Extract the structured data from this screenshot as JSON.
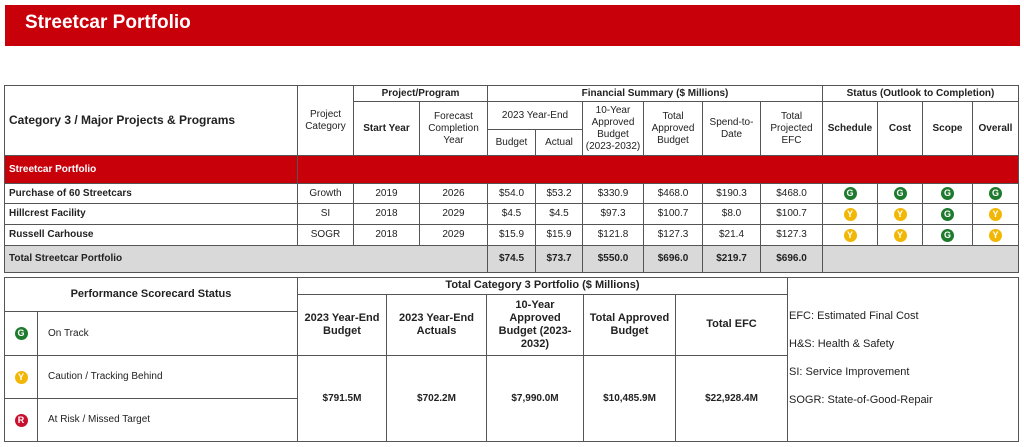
{
  "header": {
    "title": "Streetcar Portfolio"
  },
  "table": {
    "heading": "Category 3 / Major Projects & Programs",
    "project_category": "Project Category",
    "project_program": "Project/Program",
    "start_year": "Start Year",
    "forecast_year": "Forecast Completion Year",
    "financial_summary": "Financial Summary ($ Millions)",
    "year_end": "2023 Year-End",
    "budget": "Budget",
    "actual": "Actual",
    "approved_10": "10-Year Approved Budget (2023-2032)",
    "total_approved": "Total Approved Budget",
    "spend": "Spend-to-Date",
    "efc": "Total Projected EFC",
    "status": "Status (Outlook to Completion)",
    "schedule": "Schedule",
    "cost": "Cost",
    "scope": "Scope",
    "overall": "Overall",
    "section": "Streetcar Portfolio",
    "rows": [
      [
        "Purchase of 60 Streetcars",
        "Growth",
        "2019",
        "2026",
        "$54.0",
        "$53.2",
        "$330.9",
        "$468.0",
        "$190.3",
        "$468.0",
        "G",
        "G",
        "G",
        "G"
      ],
      [
        "Hillcrest Facility",
        "SI",
        "2018",
        "2029",
        "$4.5",
        "$4.5",
        "$97.3",
        "$100.7",
        "$8.0",
        "$100.7",
        "Y",
        "Y",
        "G",
        "Y"
      ],
      [
        "Russell Carhouse",
        "SOGR",
        "2018",
        "2029",
        "$15.9",
        "$15.9",
        "$121.8",
        "$127.3",
        "$21.4",
        "$127.3",
        "Y",
        "Y",
        "G",
        "Y"
      ]
    ],
    "total": [
      "Total Streetcar Portfolio",
      "$74.5",
      "$73.7",
      "$550.0",
      "$696.0",
      "$219.7",
      "$696.0"
    ]
  },
  "scorecard": {
    "title": "Performance Scorecard Status",
    "items": [
      {
        "icon": "G",
        "label": "On Track"
      },
      {
        "icon": "Y",
        "label": "Caution / Tracking Behind"
      },
      {
        "icon": "R",
        "label": "At Risk / Missed Target"
      }
    ]
  },
  "portfolio": {
    "title": "Total Category 3 Portfolio ($ Millions)",
    "columns": [
      "2023 Year-End Budget",
      "2023 Year-End Actuals",
      "10-Year Approved Budget (2023-2032)",
      "Total Approved Budget",
      "Total EFC"
    ],
    "values": [
      "$791.5M",
      "$702.2M",
      "$7,990.0M",
      "$10,485.9M",
      "$22,928.4M"
    ]
  },
  "legend": [
    "EFC: Estimated Final Cost",
    "H&S: Health & Safety",
    "SI: Service Improvement",
    "SOGR: State-of-Good-Repair"
  ]
}
